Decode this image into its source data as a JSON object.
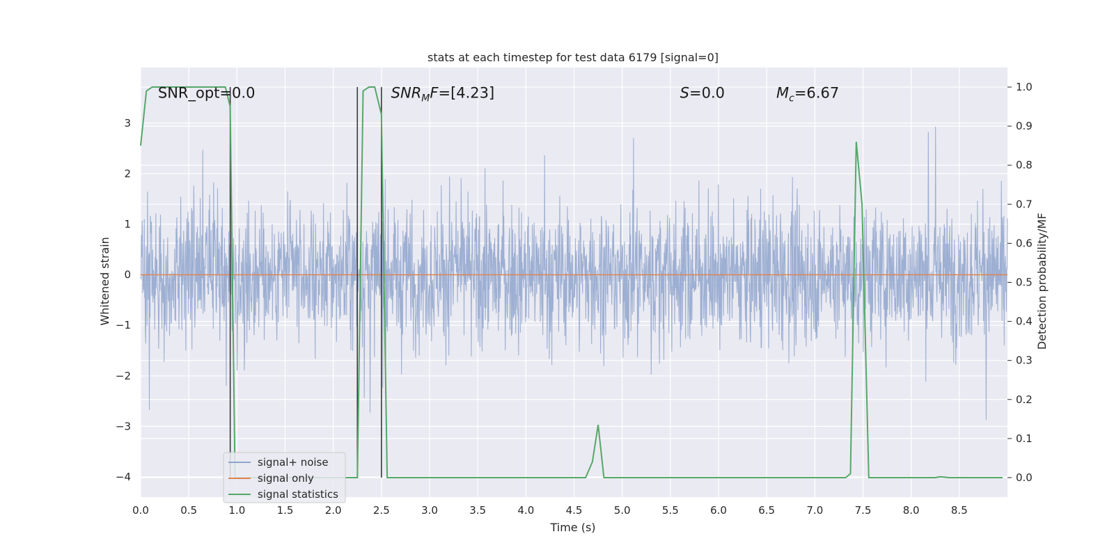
{
  "chart_data": {
    "type": "line",
    "title": "stats at each timestep for test data 6179 [signal=0]",
    "xlabel": "Time (s)",
    "ylabel": "Whitened strain",
    "ylabel_right": "Detection probability/MF",
    "xlim": [
      0.0,
      9.0
    ],
    "ylim": [
      -4.4,
      4.1
    ],
    "ylim_right": [
      -0.05,
      1.05
    ],
    "x_ticks": [
      "0.0",
      "0.5",
      "1.0",
      "1.5",
      "2.0",
      "2.5",
      "3.0",
      "3.5",
      "4.0",
      "4.5",
      "5.0",
      "5.5",
      "6.0",
      "6.5",
      "7.0",
      "7.5",
      "8.0",
      "8.5"
    ],
    "y_ticks": [
      "3",
      "2",
      "1",
      "0",
      "−1",
      "−2",
      "−3",
      "−4"
    ],
    "y_ticks_right": [
      "1.0",
      "0.9",
      "0.8",
      "0.7",
      "0.6",
      "0.5",
      "0.4",
      "0.3",
      "0.2",
      "0.1",
      "0.0"
    ],
    "grid": true,
    "legend_position": "lower-left",
    "annotations": [
      {
        "text": "SNR_opt=0.0",
        "x": 0.18,
        "y": 3.6
      },
      {
        "text": "SNR_MF=[4.23]",
        "x": 2.6,
        "y": 3.6
      },
      {
        "text": "S=0.0",
        "x": 5.6,
        "y": 3.6
      },
      {
        "text": "M_c=6.67",
        "x": 6.6,
        "y": 3.6
      }
    ],
    "vlines": [
      0.93,
      2.25,
      2.5
    ],
    "series": [
      {
        "name": "signal+ noise",
        "axis": "left",
        "color": "#8fa5cd",
        "description": "whitened strain noise fluctuating mostly between -2 and 2 with spikes to about ±3.5",
        "envelope": {
          "x": [
            0.0,
            9.0
          ],
          "typical_min": -1.8,
          "typical_max": 1.8,
          "spike_min": -4.0,
          "spike_max": 3.5
        }
      },
      {
        "name": "signal only",
        "axis": "left",
        "color": "#dd8452",
        "x": [
          0.0,
          9.0
        ],
        "y": [
          0.0,
          0.0
        ]
      },
      {
        "name": "signal statistics",
        "axis": "right",
        "color": "#55a868",
        "x": [
          0.0,
          0.06,
          0.12,
          0.5,
          0.88,
          0.93,
          0.98,
          1.03,
          2.2,
          2.25,
          2.31,
          2.37,
          2.43,
          2.5,
          2.56,
          2.62,
          4.62,
          4.69,
          4.75,
          4.81,
          7.32,
          7.37,
          7.43,
          7.49,
          7.56,
          7.62,
          8.25,
          8.3,
          8.4,
          8.95
        ],
        "y": [
          0.85,
          0.99,
          1.0,
          1.0,
          1.0,
          0.95,
          0.0,
          0.0,
          0.0,
          0.0,
          0.99,
          1.0,
          1.0,
          0.93,
          0.0,
          0.0,
          0.0,
          0.04,
          0.135,
          0.0,
          0.0,
          0.01,
          0.86,
          0.7,
          0.0,
          0.0,
          0.0,
          0.002,
          0.0,
          0.0
        ]
      }
    ]
  },
  "colors": {
    "plot_bg": "#eaeaf2",
    "grid": "#ffffff",
    "noise": "#8fa5cd",
    "signal": "#dd8452",
    "stats": "#55a868",
    "vline": "#3a3a3a"
  }
}
